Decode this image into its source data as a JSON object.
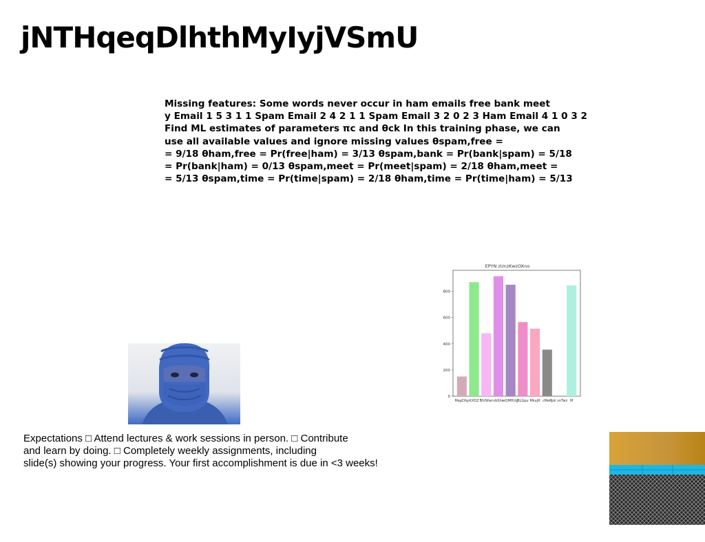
{
  "slide": {
    "title": "jNTHqeqDlhthMyIyjVSmU",
    "body_lines": [
      "Missing features: Some words never occur in ham emails free bank meet",
      "y Email 1 5 3 1 1 Spam Email 2 4 2 1 1 Spam Email 3 2 0 2 3 Ham Email 4 1 0 3 2",
      "Find ML estimates of parameters πc and θck In this training phase, we can",
      "use all available values and ignore missing values θspam,free =",
      "= 9/18 θham,free = Pr(free|ham) = 3/13 θspam,bank = Pr(bank|spam) = 5/18",
      "= Pr(bank|ham) = 0/13 θspam,meet = Pr(meet|spam) = 2/18 θham,meet =",
      "= 5/13 θspam,time = Pr(time|spam) = 2/18 θham,time = Pr(time|ham) = 5/13"
    ],
    "footer_lines": [
      "Expectations □ Attend lectures & work sessions in person. □ Contribute",
      "and learn by doing. □ Completely weekly assignments, including",
      "slide(s) showing your progress. Your first accomplishment is due in <3 weeks!"
    ]
  },
  "chart_data": {
    "type": "bar",
    "title": "EPYN zUnzKwzOXno",
    "categories": [
      "MapDhp",
      "KXDZ",
      "BIVWwr",
      "vbShe",
      "sQMHUg",
      "BLGpu",
      "MkxjR",
      "cMeR",
      "jzk vnTwz",
      "M"
    ],
    "values": [
      150,
      870,
      480,
      915,
      850,
      565,
      515,
      355,
      0,
      845
    ],
    "colors": [
      "#d4aabb",
      "#8ee88e",
      "#f7b7f3",
      "#e08fe8",
      "#a487c4",
      "#ee8ec8",
      "#f9a8c0",
      "#8a8a86",
      "#ffffff",
      "#aef0e0"
    ],
    "ylim": [
      0,
      960
    ],
    "yticks": [
      0,
      200,
      400,
      600,
      800
    ],
    "grid": false
  }
}
